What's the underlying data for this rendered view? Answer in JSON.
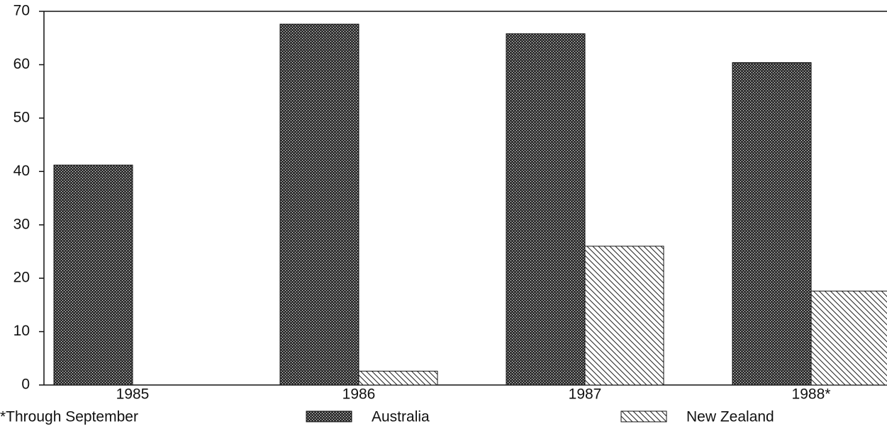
{
  "chart_data": {
    "type": "bar",
    "categories": [
      "1985",
      "1986",
      "1987",
      "1988*"
    ],
    "series": [
      {
        "name": "Australia",
        "color": "#333333",
        "pattern": "dots",
        "values": [
          41.2,
          67.6,
          65.8,
          60.4
        ]
      },
      {
        "name": "New Zealand",
        "color": "#222222",
        "pattern": "hatch",
        "values": [
          null,
          2.6,
          26,
          17.6
        ]
      }
    ],
    "ylim": [
      0,
      70
    ],
    "yticks": [
      0,
      10,
      20,
      30,
      40,
      50,
      60,
      70
    ],
    "footnote": "*Through September"
  }
}
